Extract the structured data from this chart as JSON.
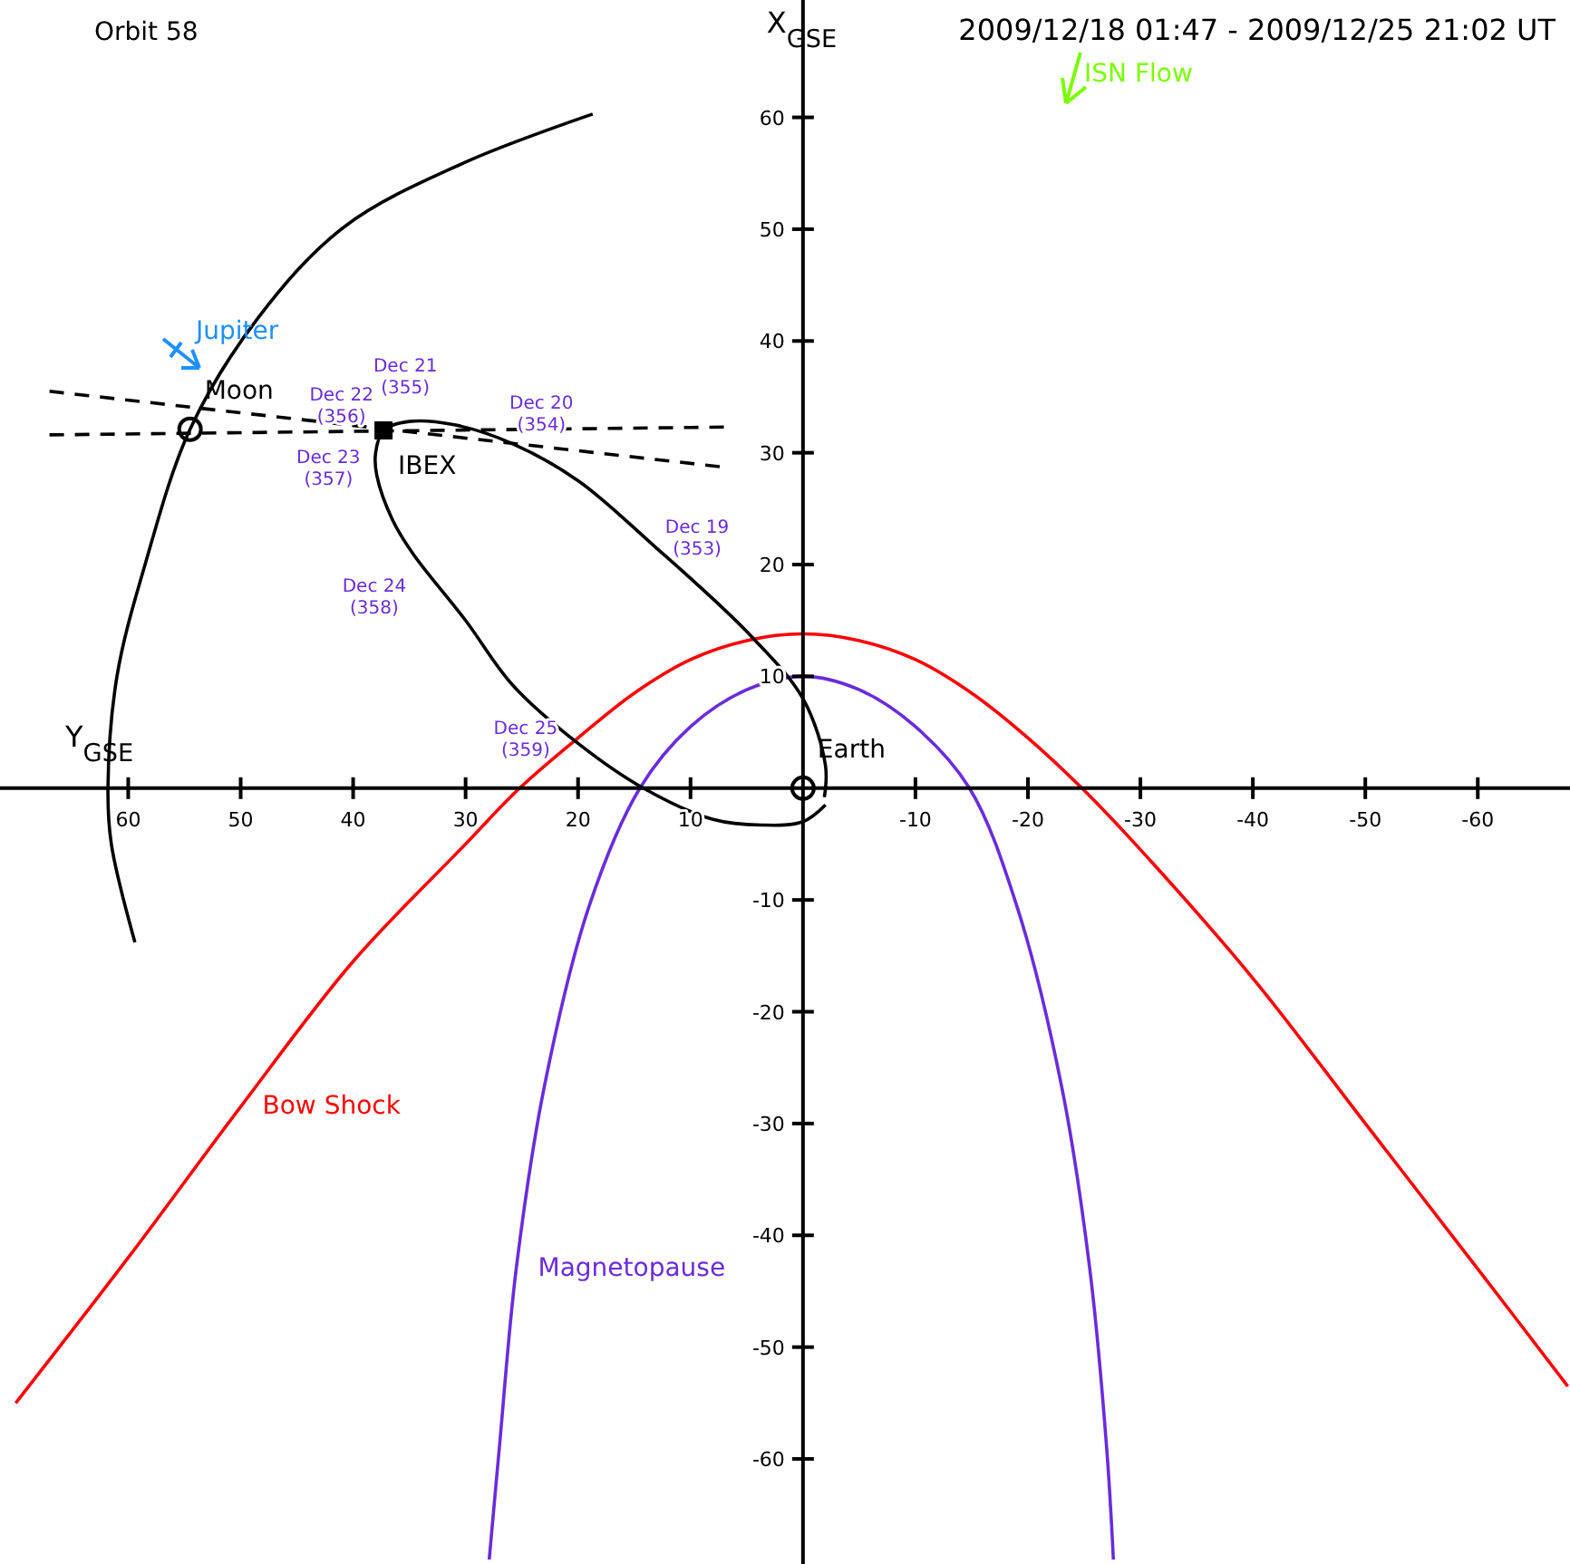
{
  "chart_data": {
    "type": "line",
    "title": "Orbit 58",
    "subtitle": "2009/12/18 01:47 - 2009/12/25 21:02 UT",
    "xlabel": "Y$_{GSE}$",
    "ylabel": "X$_{GSE}$",
    "xlim": [
      71.4,
      -68.2
    ],
    "ylim": [
      -69.4,
      70.5
    ],
    "xticks": [
      60,
      50,
      40,
      30,
      20,
      10,
      -10,
      -20,
      -30,
      -40,
      -50,
      -60
    ],
    "yticks": [
      60,
      50,
      40,
      30,
      20,
      10,
      -10,
      -20,
      -30,
      -40,
      -50,
      -60
    ],
    "grid": false,
    "series": [
      {
        "name": "Bow Shock",
        "color": "#ff0000",
        "x": [
          70,
          60,
          50,
          40,
          30,
          25.2,
          20,
          15,
          10,
          5,
          0,
          -5,
          -10,
          -15,
          -20,
          -24.8,
          -30,
          -40,
          -50,
          -60,
          -68
        ],
        "values": [
          -55,
          -42,
          -28.5,
          -15.5,
          -5,
          0,
          4.5,
          8.5,
          11.5,
          13.2,
          13.8,
          13.2,
          11.5,
          8.5,
          4.5,
          0,
          -5.5,
          -17,
          -30,
          -43,
          -53.5
        ]
      },
      {
        "name": "Magnetopause",
        "color": "#6a2cdc",
        "x": [
          27.9,
          27,
          25.5,
          23,
          19,
          14.5,
          10,
          5,
          0,
          -5,
          -10,
          -14.8,
          -19,
          -23,
          -25.5,
          -27,
          -27.6
        ],
        "values": [
          -69,
          -59,
          -43,
          -26.7,
          -10.5,
          0,
          5.5,
          8.8,
          10,
          8.8,
          5.5,
          0,
          -10.5,
          -26.7,
          -43,
          -59,
          -69
        ]
      },
      {
        "color": "#000000",
        "x": [
          -1.9,
          -2,
          0,
          5,
          13.5,
          20,
          25.8,
          31,
          35,
          37.3,
          38,
          37.9,
          36.5,
          34.7,
          30,
          25.8,
          20,
          14.2,
          8,
          3.7,
          0,
          -2
        ],
        "values": [
          -0.8,
          2,
          8,
          14,
          21.9,
          27.5,
          30.8,
          32.5,
          32.8,
          32,
          30,
          28,
          24,
          21,
          15,
          9.2,
          4,
          0,
          -2.8,
          -3.3,
          -3,
          -1.5
        ]
      },
      {
        "color": "#000000",
        "x": [
          18.7,
          30,
          40.8,
          48.5,
          54.5,
          58.5,
          61,
          61.8,
          61.5,
          59.4
        ],
        "values": [
          60.3,
          56,
          50.2,
          42,
          32.1,
          20,
          10,
          0,
          -5,
          -13.8
        ]
      },
      {
        "color": "#000000",
        "line_style": "dashed",
        "x": [
          67,
          6.9
        ],
        "values": [
          35.5,
          28.7
        ]
      },
      {
        "color": "#000000",
        "line_style": "dashed",
        "x": [
          67,
          6.9
        ],
        "values": [
          31.6,
          32.3
        ]
      },
      {
        "name": "Moon",
        "type": "scatter",
        "marker": "circle",
        "color": "#000000",
        "x": [
          54.5
        ],
        "values": [
          32.1
        ]
      },
      {
        "name": "IBEX",
        "type": "scatter",
        "marker": "square",
        "color": "#000000",
        "x": [
          37.3
        ],
        "values": [
          32
        ]
      },
      {
        "name": "Earth",
        "type": "scatter",
        "marker": "circle",
        "color": "#000000",
        "x": [
          0
        ],
        "values": [
          0
        ]
      }
    ],
    "annotations": [
      {
        "text": "Dec 19\n(353)",
        "x": 13.9,
        "y": 23
      },
      {
        "text": "Dec 20\n(354)",
        "x": 26,
        "y": 30
      },
      {
        "text": "Dec 21\n(355)",
        "x": 33.5,
        "y": 32.8
      },
      {
        "text": "Dec 22\n(356)",
        "x": 37.6,
        "y": 31.4
      },
      {
        "text": "Dec 23\n(357)",
        "x": 37.9,
        "y": 27.4
      },
      {
        "text": "Dec 24\n(358)",
        "x": 34.8,
        "y": 20.3
      },
      {
        "text": "Dec 25\n(359)",
        "x": 25.8,
        "y": 8.9
      },
      "ISN Flow",
      "Jupiter"
    ]
  }
}
